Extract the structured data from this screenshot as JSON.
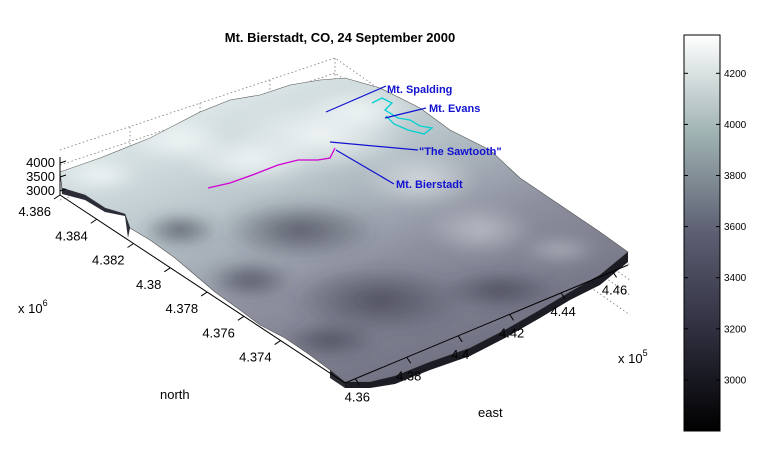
{
  "chart_data": {
    "type": "surface",
    "title": "Mt. Bierstadt, CO, 24 September 2000",
    "xlabel": "east",
    "ylabel": "north",
    "x_exponent": "x 10",
    "x_exponent_power": "5",
    "y_exponent": "x 10",
    "y_exponent_power": "6",
    "x_ticks": [
      "4.36",
      "4.38",
      "4.4",
      "4.42",
      "4.44",
      "4.46"
    ],
    "x_tick_values": [
      4.36,
      4.38,
      4.4,
      4.42,
      4.44,
      4.46
    ],
    "y_ticks": [
      "4.386",
      "4.384",
      "4.382",
      "4.38",
      "4.378",
      "4.376",
      "4.374"
    ],
    "y_tick_values": [
      4.386,
      4.384,
      4.382,
      4.38,
      4.378,
      4.376,
      4.374
    ],
    "z_ticks": [
      "4000",
      "3500",
      "3000"
    ],
    "z_tick_values": [
      4000,
      3500,
      3000
    ],
    "colorbar": {
      "ticks": [
        "4200",
        "4000",
        "3800",
        "3600",
        "3400",
        "3200",
        "3000"
      ],
      "tick_values": [
        4200,
        4000,
        3800,
        3600,
        3400,
        3200,
        3000
      ],
      "range": [
        2800,
        4350
      ],
      "colormap": "bone",
      "color_low": "#000000",
      "color_high": "#ffffff"
    },
    "annotations": [
      {
        "label": "Mt. Spalding",
        "color": "#1212d0"
      },
      {
        "label": "Mt. Evans",
        "color": "#1212d0"
      },
      {
        "label": "\"The Sawtooth\"",
        "color": "#1212d0"
      },
      {
        "label": "Mt. Bierstadt",
        "color": "#1212d0"
      }
    ],
    "traces": [
      {
        "color": "#d000d0"
      },
      {
        "color": "#00d0d0"
      }
    ],
    "grid": true
  }
}
